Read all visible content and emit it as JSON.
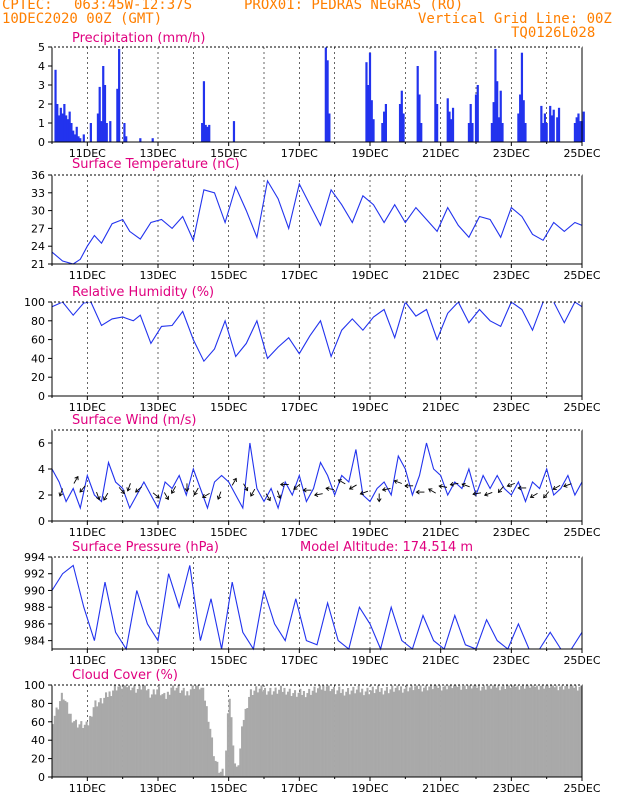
{
  "header": {
    "line1_left": "CPTEC:",
    "coords": "063:45W-12:37S",
    "station": "PROX01: PEDRAS NEGRAS (RO)",
    "run": "10DEC2020 00Z (GMT)",
    "grid_note": "Vertical Grid Line: 00Z",
    "model": "TQ0126L028"
  },
  "colors": {
    "header_text": "#ff7f00",
    "panel_title": "#e0007f",
    "series": "#2233ee",
    "bars": "#2233ee",
    "cloud": "#a9a9a9",
    "axis": "#000000"
  },
  "x_ticks": [
    "11DEC",
    "13DEC",
    "15DEC",
    "17DEC",
    "19DEC",
    "21DEC",
    "23DEC",
    "25DEC"
  ],
  "chart_data": [
    {
      "id": "precip",
      "type": "bar",
      "title": "Precipitation (mm/h)",
      "ylim": [
        0,
        5
      ],
      "yticks": [
        0,
        1,
        2,
        3,
        4,
        5
      ],
      "x_unit": "days since 10DEC2020 00Z",
      "x": [
        0.1,
        0.15,
        0.2,
        0.25,
        0.3,
        0.35,
        0.4,
        0.45,
        0.5,
        0.55,
        0.6,
        0.65,
        0.7,
        0.75,
        0.8,
        0.9,
        1.1,
        1.3,
        1.35,
        1.4,
        1.45,
        1.5,
        1.55,
        1.65,
        1.85,
        1.9,
        2.05,
        2.1,
        2.5,
        2.85,
        4.25,
        4.3,
        4.35,
        4.4,
        4.45,
        5.15,
        7.75,
        7.8,
        7.85,
        8.9,
        8.95,
        9.0,
        9.05,
        9.1,
        9.35,
        9.4,
        9.45,
        9.85,
        9.9,
        9.95,
        10.35,
        10.4,
        10.45,
        10.85,
        10.9,
        11.2,
        11.25,
        11.3,
        11.35,
        11.8,
        11.85,
        11.9,
        12.0,
        12.05,
        12.45,
        12.5,
        12.55,
        12.6,
        12.65,
        12.7,
        12.75,
        13.2,
        13.25,
        13.3,
        13.35,
        13.4,
        13.85,
        13.9,
        13.95,
        14.0,
        14.1,
        14.15,
        14.2,
        14.3,
        14.35,
        14.8,
        14.85,
        14.9,
        14.95,
        15.0,
        15.05
      ],
      "values": [
        3.8,
        2.0,
        1.4,
        1.8,
        1.5,
        2.0,
        1.4,
        1.2,
        1.6,
        1.0,
        0.6,
        0.4,
        0.8,
        0.3,
        0.2,
        0.4,
        1.0,
        1.5,
        2.9,
        1.1,
        4.0,
        3.0,
        1.0,
        1.1,
        2.8,
        4.9,
        1.0,
        0.3,
        0.2,
        0.2,
        1.0,
        3.2,
        0.9,
        0.8,
        0.9,
        1.1,
        5.0,
        4.3,
        1.5,
        4.2,
        3.0,
        4.7,
        2.2,
        1.2,
        1.0,
        1.6,
        2.0,
        2.0,
        2.7,
        1.5,
        4.0,
        2.5,
        1.0,
        4.8,
        2.0,
        2.3,
        1.6,
        1.2,
        1.8,
        1.0,
        2.0,
        1.0,
        2.5,
        3.0,
        1.0,
        2.1,
        4.9,
        3.2,
        1.3,
        2.7,
        1.0,
        1.5,
        2.5,
        4.7,
        2.2,
        1.0,
        1.9,
        1.0,
        1.5,
        1.0,
        1.9,
        1.4,
        1.7,
        1.3,
        1.8,
        1.0,
        1.3,
        1.5,
        1.1,
        1.1,
        1.6
      ]
    },
    {
      "id": "temp",
      "type": "line",
      "title": "Surface Temperature (nC)",
      "ylim": [
        21,
        36
      ],
      "yticks": [
        21,
        24,
        27,
        30,
        33,
        36
      ],
      "x_unit": "days since 10DEC2020 00Z",
      "x": [
        0.0,
        0.3,
        0.6,
        0.8,
        1.0,
        1.2,
        1.4,
        1.7,
        2.0,
        2.2,
        2.5,
        2.8,
        3.1,
        3.4,
        3.7,
        4.0,
        4.3,
        4.6,
        4.9,
        5.2,
        5.5,
        5.8,
        6.1,
        6.4,
        6.7,
        7.0,
        7.3,
        7.6,
        7.9,
        8.2,
        8.5,
        8.8,
        9.1,
        9.4,
        9.7,
        10.0,
        10.3,
        10.6,
        10.9,
        11.2,
        11.5,
        11.8,
        12.1,
        12.4,
        12.7,
        13.0,
        13.3,
        13.6,
        13.9,
        14.2,
        14.5,
        14.8,
        15.0
      ],
      "values": [
        23.0,
        21.5,
        20.9,
        21.8,
        24.0,
        25.8,
        24.5,
        27.8,
        28.5,
        26.5,
        25.2,
        28.0,
        28.5,
        27.0,
        29.0,
        25.0,
        33.5,
        33.0,
        28.0,
        34.0,
        30.0,
        25.5,
        35.0,
        32.0,
        27.0,
        34.5,
        31.0,
        27.5,
        33.5,
        31.0,
        28.0,
        32.5,
        31.0,
        28.0,
        31.0,
        28.0,
        30.5,
        28.5,
        26.5,
        30.5,
        27.5,
        25.5,
        29.0,
        28.5,
        25.5,
        30.5,
        29.0,
        26.0,
        25.0,
        28.0,
        26.5,
        28.0,
        27.5
      ]
    },
    {
      "id": "rh",
      "type": "line",
      "title": "Relative Humidity (%)",
      "ylim": [
        0,
        100
      ],
      "yticks": [
        0,
        20,
        40,
        60,
        80,
        100
      ],
      "x_unit": "days since 10DEC2020 00Z",
      "x": [
        0.0,
        0.3,
        0.6,
        0.9,
        1.1,
        1.4,
        1.7,
        2.0,
        2.3,
        2.5,
        2.8,
        3.1,
        3.4,
        3.7,
        4.0,
        4.3,
        4.6,
        4.9,
        5.2,
        5.5,
        5.8,
        6.1,
        6.4,
        6.7,
        7.0,
        7.3,
        7.6,
        7.9,
        8.2,
        8.5,
        8.8,
        9.1,
        9.4,
        9.7,
        10.0,
        10.3,
        10.6,
        10.9,
        11.2,
        11.5,
        11.8,
        12.1,
        12.4,
        12.7,
        13.0,
        13.3,
        13.6,
        13.9,
        14.2,
        14.5,
        14.8,
        15.0
      ],
      "values": [
        95.0,
        100.0,
        86.0,
        99.0,
        100.0,
        75.0,
        82.0,
        84.0,
        80.0,
        86.0,
        56.0,
        74.0,
        75.0,
        90.0,
        60.0,
        37.0,
        50.0,
        80.0,
        42.0,
        56.0,
        80.0,
        40.0,
        52.0,
        62.0,
        45.0,
        64.0,
        80.0,
        42.0,
        70.0,
        82.0,
        70.0,
        84.0,
        92.0,
        62.0,
        100.0,
        85.0,
        92.0,
        60.0,
        88.0,
        100.0,
        78.0,
        92.0,
        80.0,
        74.0,
        100.0,
        92.0,
        70.0,
        100.0,
        100.0,
        78.0,
        100.0,
        95.0
      ]
    },
    {
      "id": "wind",
      "type": "line",
      "title": "Surface Wind (m/s)",
      "ylim": [
        0,
        7
      ],
      "yticks": [
        0,
        2,
        4,
        6
      ],
      "x_unit": "days since 10DEC2020 00Z",
      "x": [
        0.0,
        0.2,
        0.4,
        0.6,
        0.8,
        1.0,
        1.2,
        1.4,
        1.6,
        1.8,
        2.0,
        2.2,
        2.4,
        2.6,
        2.8,
        3.0,
        3.2,
        3.4,
        3.6,
        3.8,
        4.0,
        4.2,
        4.4,
        4.6,
        4.8,
        5.0,
        5.2,
        5.4,
        5.6,
        5.8,
        6.0,
        6.2,
        6.4,
        6.6,
        6.8,
        7.0,
        7.2,
        7.4,
        7.6,
        7.8,
        8.0,
        8.2,
        8.4,
        8.6,
        8.8,
        9.0,
        9.2,
        9.4,
        9.6,
        9.8,
        10.0,
        10.2,
        10.4,
        10.6,
        10.8,
        11.0,
        11.2,
        11.4,
        11.6,
        11.8,
        12.0,
        12.2,
        12.4,
        12.6,
        12.8,
        13.0,
        13.2,
        13.4,
        13.6,
        13.8,
        14.0,
        14.2,
        14.4,
        14.6,
        14.8,
        15.0
      ],
      "values": [
        4.0,
        3.0,
        1.5,
        2.5,
        1.0,
        3.5,
        2.0,
        1.5,
        4.5,
        3.0,
        2.5,
        1.0,
        2.0,
        3.0,
        2.0,
        1.0,
        3.0,
        2.5,
        3.5,
        2.0,
        4.0,
        2.5,
        1.0,
        3.0,
        3.5,
        3.0,
        2.0,
        1.0,
        6.0,
        2.5,
        1.5,
        2.5,
        1.0,
        3.0,
        2.0,
        3.5,
        1.5,
        2.5,
        4.5,
        3.5,
        2.0,
        3.5,
        3.0,
        5.5,
        2.0,
        1.5,
        2.5,
        3.0,
        2.0,
        5.0,
        4.0,
        2.0,
        3.5,
        6.0,
        4.0,
        3.5,
        2.0,
        3.0,
        2.5,
        4.0,
        2.0,
        3.5,
        2.5,
        3.5,
        2.5,
        2.0,
        3.0,
        1.5,
        3.0,
        2.5,
        4.0,
        2.0,
        2.5,
        3.5,
        2.0,
        3.0
      ]
    },
    {
      "id": "pressure",
      "type": "line",
      "title": "Surface Pressure (hPa)",
      "subtitle": "Model Altitude: 174.514 m",
      "ylim": [
        983,
        994
      ],
      "yticks": [
        984,
        986,
        988,
        990,
        992,
        994
      ],
      "x_unit": "days since 10DEC2020 00Z",
      "x": [
        0.0,
        0.3,
        0.6,
        0.9,
        1.2,
        1.5,
        1.8,
        2.1,
        2.4,
        2.7,
        3.0,
        3.3,
        3.6,
        3.9,
        4.2,
        4.5,
        4.8,
        5.1,
        5.4,
        5.7,
        6.0,
        6.3,
        6.6,
        6.9,
        7.2,
        7.5,
        7.8,
        8.1,
        8.4,
        8.7,
        9.0,
        9.3,
        9.6,
        9.9,
        10.2,
        10.5,
        10.8,
        11.1,
        11.4,
        11.7,
        12.0,
        12.3,
        12.6,
        12.9,
        13.2,
        13.5,
        13.8,
        14.1,
        14.4,
        14.7,
        15.0
      ],
      "values": [
        990.0,
        992.0,
        993.0,
        988.0,
        984.0,
        991.0,
        985.0,
        983.0,
        990.0,
        986.0,
        984.0,
        992.0,
        988.0,
        993.0,
        984.0,
        989.0,
        983.0,
        991.0,
        985.0,
        983.0,
        990.0,
        986.0,
        984.0,
        989.0,
        984.0,
        983.5,
        988.5,
        984.0,
        983.0,
        988.0,
        986.0,
        983.0,
        988.0,
        984.0,
        982.5,
        987.0,
        984.0,
        982.5,
        987.0,
        983.5,
        983.0,
        986.5,
        984.0,
        983.0,
        986.0,
        983.0,
        982.0,
        985.0,
        983.0,
        982.0,
        985.0
      ]
    },
    {
      "id": "cloud",
      "type": "area",
      "title": "Cloud Cover (%)",
      "ylim": [
        0,
        100
      ],
      "yticks": [
        0,
        20,
        40,
        60,
        80,
        100
      ],
      "x_unit": "days since 10DEC2020 00Z",
      "x": [
        0.0,
        0.3,
        0.5,
        0.7,
        1.0,
        1.2,
        1.4,
        1.6,
        1.8,
        2.0,
        2.2,
        2.4,
        2.6,
        2.8,
        3.0,
        3.2,
        3.4,
        3.6,
        3.8,
        4.0,
        4.2,
        4.3,
        4.45,
        4.6,
        4.75,
        4.9,
        5.0,
        5.1,
        5.2,
        5.3,
        5.4,
        5.6,
        5.8,
        6.0,
        6.3,
        6.6,
        6.9,
        7.2,
        7.5,
        7.8,
        8.0,
        8.5,
        9.0,
        9.5,
        10.0,
        10.5,
        11.0,
        11.5,
        12.0,
        12.5,
        13.0,
        13.5,
        14.0,
        14.5,
        15.0
      ],
      "values": [
        60.0,
        90.0,
        68.0,
        58.0,
        55.0,
        80.0,
        82.0,
        90.0,
        98.0,
        99.0,
        100.0,
        95.0,
        100.0,
        90.0,
        96.0,
        85.0,
        100.0,
        95.0,
        90.0,
        100.0,
        98.0,
        90.0,
        60.0,
        20.0,
        5.0,
        3.0,
        98.0,
        50.0,
        3.0,
        20.0,
        60.0,
        92.0,
        95.0,
        95.0,
        93.0,
        95.0,
        90.0,
        92.0,
        95.0,
        100.0,
        93.0,
        94.0,
        94.0,
        95.0,
        97.0,
        98.0,
        99.0,
        100.0,
        99.0,
        99.0,
        100.0,
        100.0,
        100.0,
        99.0,
        99.0
      ]
    }
  ]
}
